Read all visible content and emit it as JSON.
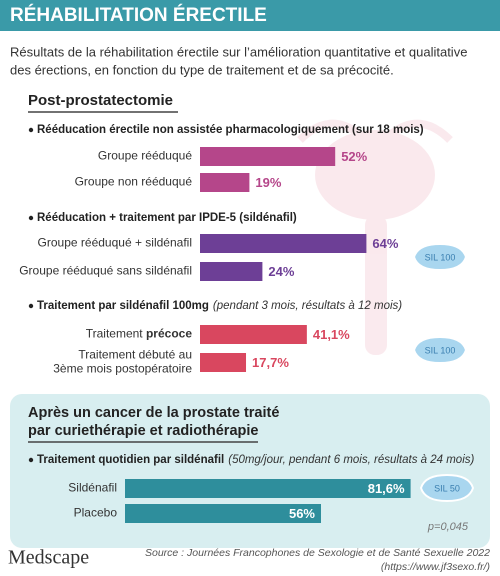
{
  "header": {
    "title": "RÉHABILITATION ÉRECTILE"
  },
  "intro": [
    "Résultats de la réhabilitation érectile sur l’amélioration quantitative et qualitative",
    "des érections, en fonction du type de traitement et de sa précocité."
  ],
  "section": {
    "title": "Post-prostatectomie",
    "groups": [
      {
        "title": "Rééducation érectile non assistée pharmacologiquement (sur 18 mois)",
        "color": "#b5468a",
        "bars": [
          {
            "label": "Groupe rééduqué",
            "value": 52,
            "value_label": "52%"
          },
          {
            "label": "Groupe non rééduqué",
            "value": 19,
            "value_label": "19%"
          }
        ]
      },
      {
        "title": "Rééducation + traitement par IPDE-5 (sildénafil)",
        "color": "#6d3f96",
        "pill": "SIL 100",
        "bars": [
          {
            "label": "Groupe rééduqué + sildénafil",
            "value": 64,
            "value_label": "64%"
          },
          {
            "label": "Groupe rééduqué sans sildénafil",
            "value": 24,
            "value_label": "24%"
          }
        ]
      },
      {
        "title": "Traitement par sildénafil 100mg",
        "note": "(pendant 3 mois, résultats à 12 mois)",
        "color": "#d9475f",
        "pill": "SIL 100",
        "bars": [
          {
            "label": "Traitement ",
            "label_emphasis": "précoce",
            "value": 41.1,
            "value_label": "41,1%"
          },
          {
            "label_lines": [
              "Traitement débuté au",
              "3ème mois postopératoire"
            ],
            "value": 17.7,
            "value_label": "17,7%"
          }
        ]
      }
    ]
  },
  "bottom": {
    "title_lines": [
      "Après un cancer de la prostate traité",
      "par curiethérapie et radiothérapie"
    ],
    "group": {
      "title": "Traitement quotidien par sildénafil",
      "note": "(50mg/jour, pendant 6 mois, résultats à 24 mois)",
      "color": "#2e8e9c",
      "pill": "SIL 50",
      "bars": [
        {
          "label": "Sildénafil",
          "value": 81.6,
          "value_label": "81,6%"
        },
        {
          "label": "Placebo",
          "value": 56,
          "value_label": "56%"
        }
      ]
    },
    "p_value": "p=0,045"
  },
  "footer": {
    "brand": "Medscape",
    "source": [
      "Source : Journées Francophones de Sexologie et de Santé Sexuelle 2022",
      "(https://www.jf3sexo.fr/)"
    ]
  }
}
